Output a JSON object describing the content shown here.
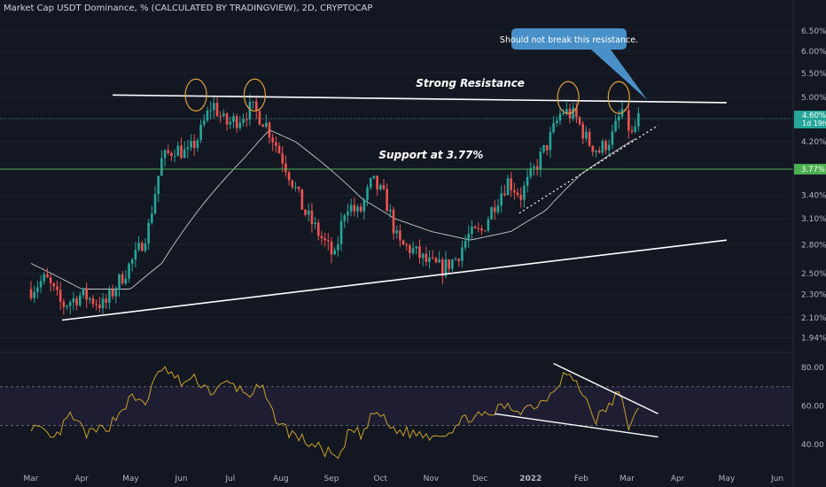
{
  "header": {
    "title": "Market Cap USDT Dominance, % (CALCULATED BY TRADINGVIEW), 2D, CRYPTOCAP"
  },
  "colors": {
    "background": "#131722",
    "up": "#26a69a",
    "down": "#ef5350",
    "ma": "#c8c8c8",
    "rsi": "#c9a227",
    "support": "#4caf50",
    "teal_label": "#26a69a",
    "callout": "#4a90c8",
    "circle": "#e0a040"
  },
  "chart_data": [
    {
      "type": "candlestick",
      "title": "Market Cap USDT Dominance, % (CALCULATED BY TRADINGVIEW), 2D, CRYPTOCAP",
      "y_scale": "log",
      "ylim": [
        1.87,
        6.8
      ],
      "y_ticks": [
        "6.50%",
        "6.00%",
        "5.50%",
        "5.00%",
        "4.60%",
        "4.20%",
        "3.77%",
        "3.40%",
        "3.10%",
        "2.80%",
        "2.50%",
        "2.30%",
        "2.10%",
        "1.94%"
      ],
      "x_ticks": [
        "Mar",
        "Apr",
        "May",
        "Jun",
        "Jul",
        "Aug",
        "Sep",
        "Oct",
        "Nov",
        "Dec",
        "2022",
        "Feb",
        "Mar",
        "Apr",
        "May",
        "Jun"
      ],
      "last_price": "4.60%",
      "countdown": "1d 19h",
      "support_level": "3.77%",
      "annotations": {
        "resistance": "Strong Resistance",
        "support": "Support at 3.77%",
        "callout": "Should not break this resistance."
      },
      "price_anchors": [
        [
          "2021-03-01",
          2.35
        ],
        [
          "2021-03-10",
          2.45
        ],
        [
          "2021-03-20",
          2.2
        ],
        [
          "2021-04-01",
          2.3
        ],
        [
          "2021-04-15",
          2.2
        ],
        [
          "2021-04-25",
          2.45
        ],
        [
          "2021-05-05",
          2.7
        ],
        [
          "2021-05-12",
          3.0
        ],
        [
          "2021-05-20",
          3.9
        ],
        [
          "2021-05-28",
          4.1
        ],
        [
          "2021-06-05",
          4.0
        ],
        [
          "2021-06-12",
          4.3
        ],
        [
          "2021-06-20",
          4.9
        ],
        [
          "2021-06-28",
          4.5
        ],
        [
          "2021-07-06",
          4.6
        ],
        [
          "2021-07-14",
          4.8
        ],
        [
          "2021-07-22",
          4.55
        ],
        [
          "2021-07-30",
          4.1
        ],
        [
          "2021-08-07",
          3.65
        ],
        [
          "2021-08-15",
          3.2
        ],
        [
          "2021-08-25",
          2.9
        ],
        [
          "2021-09-03",
          2.65
        ],
        [
          "2021-09-10",
          3.3
        ],
        [
          "2021-09-18",
          3.15
        ],
        [
          "2021-09-26",
          3.6
        ],
        [
          "2021-10-04",
          3.35
        ],
        [
          "2021-10-12",
          2.8
        ],
        [
          "2021-10-20",
          2.75
        ],
        [
          "2021-10-30",
          2.6
        ],
        [
          "2021-11-08",
          2.55
        ],
        [
          "2021-11-16",
          2.65
        ],
        [
          "2021-11-24",
          2.9
        ],
        [
          "2021-12-02",
          2.95
        ],
        [
          "2021-12-10",
          3.3
        ],
        [
          "2021-12-18",
          3.6
        ],
        [
          "2021-12-26",
          3.4
        ],
        [
          "2022-01-04",
          3.8
        ],
        [
          "2022-01-12",
          4.2
        ],
        [
          "2022-01-20",
          4.75
        ],
        [
          "2022-01-28",
          4.65
        ],
        [
          "2022-02-05",
          4.2
        ],
        [
          "2022-02-12",
          4.05
        ],
        [
          "2022-02-20",
          4.3
        ],
        [
          "2022-02-26",
          4.75
        ],
        [
          "2022-03-04",
          4.3
        ],
        [
          "2022-03-08",
          4.6
        ]
      ],
      "ma_anchors": [
        [
          "2021-03-01",
          2.6
        ],
        [
          "2021-04-01",
          2.35
        ],
        [
          "2021-05-01",
          2.35
        ],
        [
          "2021-05-20",
          2.6
        ],
        [
          "2021-06-15",
          3.3
        ],
        [
          "2021-07-10",
          3.95
        ],
        [
          "2021-07-25",
          4.4
        ],
        [
          "2021-08-10",
          4.2
        ],
        [
          "2021-09-01",
          3.75
        ],
        [
          "2021-09-20",
          3.35
        ],
        [
          "2021-10-10",
          3.1
        ],
        [
          "2021-11-01",
          2.95
        ],
        [
          "2021-11-25",
          2.85
        ],
        [
          "2021-12-20",
          2.95
        ],
        [
          "2022-01-10",
          3.2
        ],
        [
          "2022-02-01",
          3.7
        ],
        [
          "2022-03-06",
          4.25
        ]
      ],
      "trendlines": [
        {
          "name": "resistance",
          "from": [
            "2021-04-20",
            5.05
          ],
          "to": [
            "2022-05-01",
            4.9
          ]
        },
        {
          "name": "lower-support",
          "from": [
            "2021-03-20",
            2.08
          ],
          "to": [
            "2022-05-01",
            2.85
          ]
        },
        {
          "name": "rising-dotted",
          "from": [
            "2021-12-25",
            3.17
          ],
          "to": [
            "2022-03-20",
            4.48
          ]
        }
      ],
      "horizontal_lines": [
        {
          "name": "support",
          "y": 3.77
        },
        {
          "name": "price-line",
          "y": 4.6
        }
      ],
      "highlight_circles": [
        {
          "date": "2021-06-10",
          "y": 5.05
        },
        {
          "date": "2021-07-16",
          "y": 5.05
        },
        {
          "date": "2022-01-24",
          "y": 5.0
        },
        {
          "date": "2022-02-24",
          "y": 5.0
        }
      ]
    },
    {
      "type": "line",
      "title": "RSI",
      "ylim": [
        30,
        85
      ],
      "y_ticks": [
        "80.00",
        "60.00",
        "40.00"
      ],
      "band": [
        50,
        70
      ],
      "anchors": [
        [
          "2021-03-01",
          50
        ],
        [
          "2021-03-15",
          42
        ],
        [
          "2021-03-25",
          55
        ],
        [
          "2021-04-05",
          45
        ],
        [
          "2021-04-18",
          50
        ],
        [
          "2021-05-01",
          64
        ],
        [
          "2021-05-10",
          62
        ],
        [
          "2021-05-20",
          80
        ],
        [
          "2021-06-01",
          72
        ],
        [
          "2021-06-10",
          74
        ],
        [
          "2021-06-20",
          67
        ],
        [
          "2021-06-30",
          72
        ],
        [
          "2021-07-12",
          66
        ],
        [
          "2021-07-20",
          70
        ],
        [
          "2021-07-26",
          57
        ],
        [
          "2021-08-05",
          47
        ],
        [
          "2021-08-20",
          40
        ],
        [
          "2021-09-01",
          35
        ],
        [
          "2021-09-06",
          31
        ],
        [
          "2021-09-12",
          48
        ],
        [
          "2021-09-20",
          45
        ],
        [
          "2021-09-28",
          58
        ],
        [
          "2021-10-08",
          48
        ],
        [
          "2021-10-20",
          46
        ],
        [
          "2021-11-01",
          45
        ],
        [
          "2021-11-12",
          47
        ],
        [
          "2021-11-25",
          55
        ],
        [
          "2021-12-05",
          54
        ],
        [
          "2021-12-15",
          60
        ],
        [
          "2021-12-25",
          58
        ],
        [
          "2022-01-08",
          62
        ],
        [
          "2022-01-18",
          72
        ],
        [
          "2022-01-22",
          78
        ],
        [
          "2022-02-01",
          68
        ],
        [
          "2022-02-10",
          53
        ],
        [
          "2022-02-18",
          60
        ],
        [
          "2022-02-24",
          67
        ],
        [
          "2022-03-02",
          50
        ],
        [
          "2022-03-08",
          57
        ]
      ],
      "trendlines": [
        {
          "name": "rsi-upper",
          "from": [
            "2022-01-15",
            82
          ],
          "to": [
            "2022-03-20",
            56
          ]
        },
        {
          "name": "rsi-lower",
          "from": [
            "2021-12-10",
            56
          ],
          "to": [
            "2022-03-20",
            44
          ]
        }
      ]
    }
  ]
}
